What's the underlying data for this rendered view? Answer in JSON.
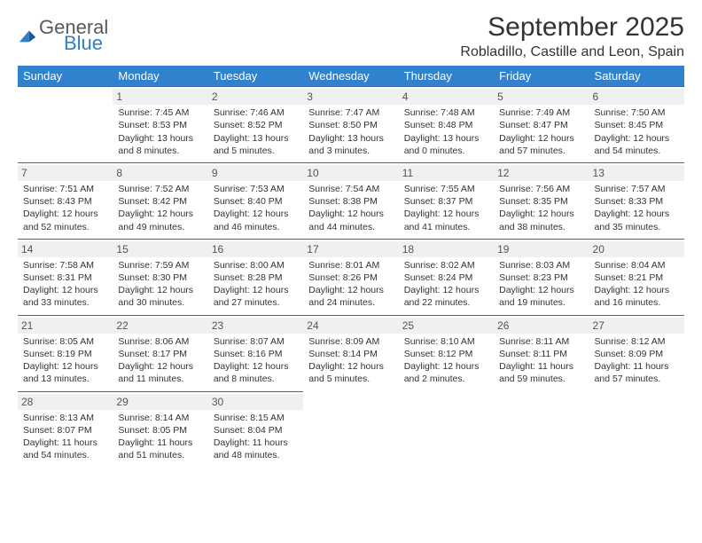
{
  "brand": {
    "general": "General",
    "blue": "Blue"
  },
  "title": "September 2025",
  "location": "Robladillo, Castille and Leon, Spain",
  "colors": {
    "header_bg": "#3182ce",
    "header_text": "#ffffff",
    "daynum_bg": "#eef0f2",
    "border": "#2b6ca3",
    "logo_blue": "#2f7fc2",
    "logo_gray": "#5a5a5a"
  },
  "weekdays": [
    "Sunday",
    "Monday",
    "Tuesday",
    "Wednesday",
    "Thursday",
    "Friday",
    "Saturday"
  ],
  "weeks": [
    [
      null,
      {
        "n": "1",
        "sr": "Sunrise: 7:45 AM",
        "ss": "Sunset: 8:53 PM",
        "dl": "Daylight: 13 hours and 8 minutes."
      },
      {
        "n": "2",
        "sr": "Sunrise: 7:46 AM",
        "ss": "Sunset: 8:52 PM",
        "dl": "Daylight: 13 hours and 5 minutes."
      },
      {
        "n": "3",
        "sr": "Sunrise: 7:47 AM",
        "ss": "Sunset: 8:50 PM",
        "dl": "Daylight: 13 hours and 3 minutes."
      },
      {
        "n": "4",
        "sr": "Sunrise: 7:48 AM",
        "ss": "Sunset: 8:48 PM",
        "dl": "Daylight: 13 hours and 0 minutes."
      },
      {
        "n": "5",
        "sr": "Sunrise: 7:49 AM",
        "ss": "Sunset: 8:47 PM",
        "dl": "Daylight: 12 hours and 57 minutes."
      },
      {
        "n": "6",
        "sr": "Sunrise: 7:50 AM",
        "ss": "Sunset: 8:45 PM",
        "dl": "Daylight: 12 hours and 54 minutes."
      }
    ],
    [
      {
        "n": "7",
        "sr": "Sunrise: 7:51 AM",
        "ss": "Sunset: 8:43 PM",
        "dl": "Daylight: 12 hours and 52 minutes."
      },
      {
        "n": "8",
        "sr": "Sunrise: 7:52 AM",
        "ss": "Sunset: 8:42 PM",
        "dl": "Daylight: 12 hours and 49 minutes."
      },
      {
        "n": "9",
        "sr": "Sunrise: 7:53 AM",
        "ss": "Sunset: 8:40 PM",
        "dl": "Daylight: 12 hours and 46 minutes."
      },
      {
        "n": "10",
        "sr": "Sunrise: 7:54 AM",
        "ss": "Sunset: 8:38 PM",
        "dl": "Daylight: 12 hours and 44 minutes."
      },
      {
        "n": "11",
        "sr": "Sunrise: 7:55 AM",
        "ss": "Sunset: 8:37 PM",
        "dl": "Daylight: 12 hours and 41 minutes."
      },
      {
        "n": "12",
        "sr": "Sunrise: 7:56 AM",
        "ss": "Sunset: 8:35 PM",
        "dl": "Daylight: 12 hours and 38 minutes."
      },
      {
        "n": "13",
        "sr": "Sunrise: 7:57 AM",
        "ss": "Sunset: 8:33 PM",
        "dl": "Daylight: 12 hours and 35 minutes."
      }
    ],
    [
      {
        "n": "14",
        "sr": "Sunrise: 7:58 AM",
        "ss": "Sunset: 8:31 PM",
        "dl": "Daylight: 12 hours and 33 minutes."
      },
      {
        "n": "15",
        "sr": "Sunrise: 7:59 AM",
        "ss": "Sunset: 8:30 PM",
        "dl": "Daylight: 12 hours and 30 minutes."
      },
      {
        "n": "16",
        "sr": "Sunrise: 8:00 AM",
        "ss": "Sunset: 8:28 PM",
        "dl": "Daylight: 12 hours and 27 minutes."
      },
      {
        "n": "17",
        "sr": "Sunrise: 8:01 AM",
        "ss": "Sunset: 8:26 PM",
        "dl": "Daylight: 12 hours and 24 minutes."
      },
      {
        "n": "18",
        "sr": "Sunrise: 8:02 AM",
        "ss": "Sunset: 8:24 PM",
        "dl": "Daylight: 12 hours and 22 minutes."
      },
      {
        "n": "19",
        "sr": "Sunrise: 8:03 AM",
        "ss": "Sunset: 8:23 PM",
        "dl": "Daylight: 12 hours and 19 minutes."
      },
      {
        "n": "20",
        "sr": "Sunrise: 8:04 AM",
        "ss": "Sunset: 8:21 PM",
        "dl": "Daylight: 12 hours and 16 minutes."
      }
    ],
    [
      {
        "n": "21",
        "sr": "Sunrise: 8:05 AM",
        "ss": "Sunset: 8:19 PM",
        "dl": "Daylight: 12 hours and 13 minutes."
      },
      {
        "n": "22",
        "sr": "Sunrise: 8:06 AM",
        "ss": "Sunset: 8:17 PM",
        "dl": "Daylight: 12 hours and 11 minutes."
      },
      {
        "n": "23",
        "sr": "Sunrise: 8:07 AM",
        "ss": "Sunset: 8:16 PM",
        "dl": "Daylight: 12 hours and 8 minutes."
      },
      {
        "n": "24",
        "sr": "Sunrise: 8:09 AM",
        "ss": "Sunset: 8:14 PM",
        "dl": "Daylight: 12 hours and 5 minutes."
      },
      {
        "n": "25",
        "sr": "Sunrise: 8:10 AM",
        "ss": "Sunset: 8:12 PM",
        "dl": "Daylight: 12 hours and 2 minutes."
      },
      {
        "n": "26",
        "sr": "Sunrise: 8:11 AM",
        "ss": "Sunset: 8:11 PM",
        "dl": "Daylight: 11 hours and 59 minutes."
      },
      {
        "n": "27",
        "sr": "Sunrise: 8:12 AM",
        "ss": "Sunset: 8:09 PM",
        "dl": "Daylight: 11 hours and 57 minutes."
      }
    ],
    [
      {
        "n": "28",
        "sr": "Sunrise: 8:13 AM",
        "ss": "Sunset: 8:07 PM",
        "dl": "Daylight: 11 hours and 54 minutes."
      },
      {
        "n": "29",
        "sr": "Sunrise: 8:14 AM",
        "ss": "Sunset: 8:05 PM",
        "dl": "Daylight: 11 hours and 51 minutes."
      },
      {
        "n": "30",
        "sr": "Sunrise: 8:15 AM",
        "ss": "Sunset: 8:04 PM",
        "dl": "Daylight: 11 hours and 48 minutes."
      },
      null,
      null,
      null,
      null
    ]
  ]
}
